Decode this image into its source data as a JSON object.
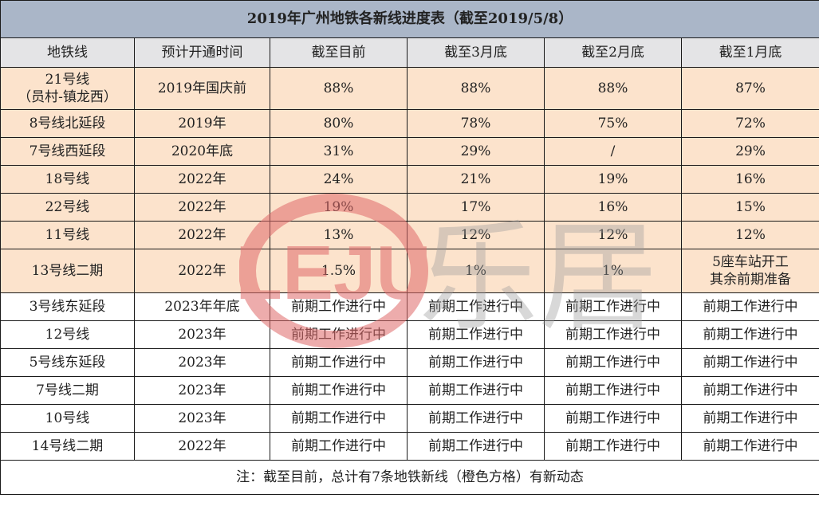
{
  "title": "2019年广州地铁各新线进度表（截至2019/5/8）",
  "columns": [
    "地铁线",
    "预计开通时间",
    "截至目前",
    "截至3月底",
    "截至2月底",
    "截至1月底"
  ],
  "rows": [
    {
      "line": "21号线\n（员村-镇龙西）",
      "open": "2019年国庆前",
      "now": "88%",
      "mar": "88%",
      "feb": "88%",
      "jan": "87%",
      "highlight": true
    },
    {
      "line": "8号线北延段",
      "open": "2019年",
      "now": "80%",
      "mar": "78%",
      "feb": "75%",
      "jan": "72%",
      "highlight": true
    },
    {
      "line": "7号线西延段",
      "open": "2020年底",
      "now": "31%",
      "mar": "29%",
      "feb": "/",
      "jan": "29%",
      "highlight": true
    },
    {
      "line": "18号线",
      "open": "2022年",
      "now": "24%",
      "mar": "21%",
      "feb": "19%",
      "jan": "16%",
      "highlight": true
    },
    {
      "line": "22号线",
      "open": "2022年",
      "now": "19%",
      "mar": "17%",
      "feb": "16%",
      "jan": "15%",
      "highlight": true
    },
    {
      "line": "11号线",
      "open": "2022年",
      "now": "13%",
      "mar": "12%",
      "feb": "12%",
      "jan": "12%",
      "highlight": true
    },
    {
      "line": "13号线二期",
      "open": "2022年",
      "now": "1.5%",
      "mar": "1%",
      "feb": "1%",
      "jan": "5座车站开工\n其余前期准备",
      "highlight": true
    },
    {
      "line": "3号线东延段",
      "open": "2023年年底",
      "now": "前期工作进行中",
      "mar": "前期工作进行中",
      "feb": "前期工作进行中",
      "jan": "前期工作进行中",
      "highlight": false
    },
    {
      "line": "12号线",
      "open": "2023年",
      "now": "前期工作进行中",
      "mar": "前期工作进行中",
      "feb": "前期工作进行中",
      "jan": "前期工作进行中",
      "highlight": false
    },
    {
      "line": "5号线东延段",
      "open": "2023年",
      "now": "前期工作进行中",
      "mar": "前期工作进行中",
      "feb": "前期工作进行中",
      "jan": "前期工作进行中",
      "highlight": false
    },
    {
      "line": "7号线二期",
      "open": "2023年",
      "now": "前期工作进行中",
      "mar": "前期工作进行中",
      "feb": "前期工作进行中",
      "jan": "前期工作进行中",
      "highlight": false
    },
    {
      "line": "10号线",
      "open": "2023年",
      "now": "前期工作进行中",
      "mar": "前期工作进行中",
      "feb": "前期工作进行中",
      "jan": "前期工作进行中",
      "highlight": false
    },
    {
      "line": "14号线二期",
      "open": "2022年",
      "now": "前期工作进行中",
      "mar": "前期工作进行中",
      "feb": "前期工作进行中",
      "jan": "前期工作进行中",
      "highlight": false
    }
  ],
  "note": "注：截至目前，总计有7条地铁新线（橙色方格）有新动态",
  "watermark": {
    "latin": "LEJU",
    "cjk": "乐居"
  },
  "colors": {
    "title_bg": "#aab6c8",
    "header_bg": "#e4e4e6",
    "highlight_bg": "#fce3cc",
    "watermark_red": "#e06a6a",
    "watermark_gray": "#9a9a9a"
  }
}
